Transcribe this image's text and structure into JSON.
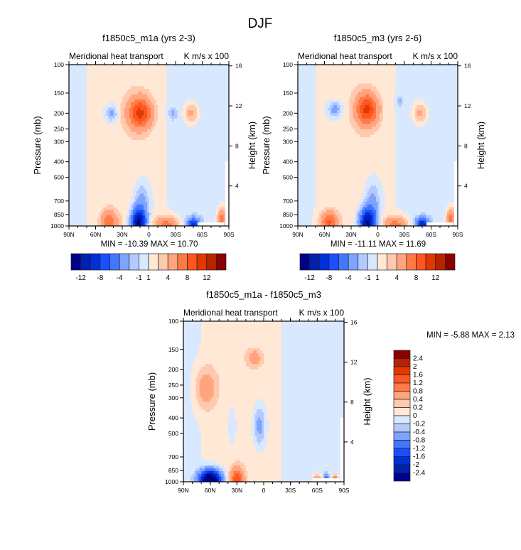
{
  "page_title": "DJF",
  "chart_data": [
    {
      "type": "heatmap",
      "title": "f1850c5_m1a (yrs 2-3)",
      "left_subtitle": "Meridional heat transport",
      "right_subtitle": "K m/s x 100",
      "xlabel": "",
      "ylabel": "Pressure (mb)",
      "ylabel_right": "Height (km)",
      "x_ticks": [
        "90N",
        "60N",
        "30N",
        "0",
        "30S",
        "60S",
        "90S"
      ],
      "x_range": [
        90,
        -90
      ],
      "y_ticks": [
        "100",
        "150",
        "200",
        "250",
        "300",
        "400",
        "500",
        "700",
        "850",
        "1000"
      ],
      "y_range_mb": [
        100,
        1000
      ],
      "y_scale": "log",
      "y_right_ticks": [
        "16",
        "12",
        "8",
        "4"
      ],
      "min_max_text": "MIN = -10.39  MAX =  10.70",
      "min": -10.39,
      "max": 10.7,
      "colorbar": {
        "orientation": "horizontal",
        "labels": [
          "-12",
          "-8",
          "-4",
          "-1",
          "1",
          "4",
          "8",
          "12"
        ],
        "levels": [
          -12,
          -10,
          -8,
          -6,
          -4,
          -2,
          -1,
          0,
          1,
          2,
          4,
          6,
          8,
          10,
          12
        ]
      },
      "features": [
        {
          "lat": 10,
          "p": 200,
          "value": 8,
          "w": 13,
          "hp": 0.22
        },
        {
          "lat": 42,
          "p": 200,
          "value": -3,
          "w": 7,
          "hp": 0.12
        },
        {
          "lat": -27,
          "p": 200,
          "value": -2,
          "w": 5,
          "hp": 0.1
        },
        {
          "lat": -48,
          "p": 200,
          "value": 3,
          "w": 8,
          "hp": 0.15
        },
        {
          "lat": 12,
          "p": 960,
          "value": -12,
          "w": 8,
          "hp": 0.2
        },
        {
          "lat": 8,
          "p": 750,
          "value": -3,
          "w": 9,
          "hp": 0.35
        },
        {
          "lat": 45,
          "p": 940,
          "value": 5,
          "w": 9,
          "hp": 0.15
        },
        {
          "lat": -20,
          "p": 990,
          "value": 5,
          "w": 13,
          "hp": 0.12
        },
        {
          "lat": -50,
          "p": 980,
          "value": -8,
          "w": 7,
          "hp": 0.09
        },
        {
          "lat": -82,
          "p": 930,
          "value": 6,
          "w": 5,
          "hp": 0.18
        }
      ]
    },
    {
      "type": "heatmap",
      "title": "f1850c5_m3 (yrs 2-6)",
      "left_subtitle": "Meridional heat transport",
      "right_subtitle": "K m/s x 100",
      "xlabel": "",
      "ylabel": "Pressure (mb)",
      "ylabel_right": "Height (km)",
      "x_ticks": [
        "90N",
        "60N",
        "30N",
        "0",
        "30S",
        "60S",
        "90S"
      ],
      "x_range": [
        90,
        -90
      ],
      "y_ticks": [
        "100",
        "150",
        "200",
        "250",
        "300",
        "400",
        "500",
        "700",
        "850",
        "1000"
      ],
      "y_range_mb": [
        100,
        1000
      ],
      "y_scale": "log",
      "y_right_ticks": [
        "16",
        "12",
        "8",
        "4"
      ],
      "min_max_text": "MIN = -11.11  MAX =  11.69",
      "min": -11.11,
      "max": 11.69,
      "colorbar": {
        "orientation": "horizontal",
        "labels": [
          "-12",
          "-8",
          "-4",
          "-1",
          "1",
          "4",
          "8",
          "12"
        ],
        "levels": [
          -12,
          -10,
          -8,
          -6,
          -4,
          -2,
          -1,
          0,
          1,
          2,
          4,
          6,
          8,
          10,
          12
        ]
      },
      "features": [
        {
          "lat": 12,
          "p": 190,
          "value": 8,
          "w": 12,
          "hp": 0.22
        },
        {
          "lat": 48,
          "p": 190,
          "value": -3,
          "w": 8,
          "hp": 0.12
        },
        {
          "lat": -25,
          "p": 170,
          "value": -2,
          "w": 4,
          "hp": 0.08
        },
        {
          "lat": -48,
          "p": 200,
          "value": 3,
          "w": 8,
          "hp": 0.15
        },
        {
          "lat": 12,
          "p": 960,
          "value": -12,
          "w": 9,
          "hp": 0.2
        },
        {
          "lat": 6,
          "p": 740,
          "value": -3,
          "w": 9,
          "hp": 0.35
        },
        {
          "lat": 55,
          "p": 950,
          "value": 6,
          "w": 9,
          "hp": 0.15
        },
        {
          "lat": -20,
          "p": 990,
          "value": 5,
          "w": 13,
          "hp": 0.12
        },
        {
          "lat": -50,
          "p": 980,
          "value": -9,
          "w": 7,
          "hp": 0.09
        },
        {
          "lat": -82,
          "p": 930,
          "value": 6,
          "w": 5,
          "hp": 0.18
        }
      ]
    },
    {
      "type": "heatmap",
      "title": "f1850c5_m1a - f1850c5_m3",
      "left_subtitle": "Meridional heat transport",
      "right_subtitle": "K m/s x 100",
      "xlabel": "",
      "ylabel": "Pressure (mb)",
      "ylabel_right": "Height (km)",
      "x_ticks": [
        "90N",
        "60N",
        "30N",
        "0",
        "30S",
        "60S",
        "90S"
      ],
      "x_range": [
        90,
        -90
      ],
      "y_ticks": [
        "100",
        "150",
        "200",
        "250",
        "300",
        "400",
        "500",
        "700",
        "850",
        "1000"
      ],
      "y_range_mb": [
        100,
        1000
      ],
      "y_scale": "log",
      "y_right_ticks": [
        "16",
        "12",
        "8",
        "4"
      ],
      "min_max_text": "MIN =  -5.88  MAX =   2.13",
      "min": -5.88,
      "max": 2.13,
      "colorbar": {
        "orientation": "vertical",
        "labels": [
          "2.4",
          "2",
          "1.6",
          "1.2",
          "0.8",
          "0.4",
          "0.2",
          "0",
          "-0.2",
          "-0.4",
          "-0.8",
          "-1.2",
          "-1.6",
          "-2",
          "-2.4"
        ],
        "levels": [
          -2.4,
          -2,
          -1.6,
          -1.2,
          -0.8,
          -0.4,
          -0.2,
          0,
          0.2,
          0.4,
          0.8,
          1.2,
          1.6,
          2,
          2.4
        ]
      },
      "features": [
        {
          "lat": 65,
          "p": 260,
          "value": 0.6,
          "w": 12,
          "hp": 0.3
        },
        {
          "lat": 10,
          "p": 170,
          "value": 0.5,
          "w": 8,
          "hp": 0.12
        },
        {
          "lat": 5,
          "p": 450,
          "value": -0.6,
          "w": 7,
          "hp": 0.3
        },
        {
          "lat": 35,
          "p": 450,
          "value": -0.3,
          "w": 5,
          "hp": 0.3
        },
        {
          "lat": 60,
          "p": 980,
          "value": -3.5,
          "w": 12,
          "hp": 0.14
        },
        {
          "lat": 30,
          "p": 970,
          "value": 1.4,
          "w": 7,
          "hp": 0.15
        },
        {
          "lat": -60,
          "p": 960,
          "value": 0.9,
          "w": 5,
          "hp": 0.07
        },
        {
          "lat": -80,
          "p": 960,
          "value": 1.4,
          "w": 3,
          "hp": 0.05
        },
        {
          "lat": -70,
          "p": 960,
          "value": -1.0,
          "w": 3,
          "hp": 0.06
        }
      ]
    }
  ],
  "colormap": [
    "#00008b",
    "#0020b0",
    "#0030d8",
    "#1a4fff",
    "#4477ff",
    "#7ea4ff",
    "#b3c9ff",
    "#d8e8ff",
    "#ffe9d6",
    "#ffc9ad",
    "#ffa47e",
    "#ff7a45",
    "#ff5520",
    "#e03800",
    "#b82200",
    "#8b0000"
  ]
}
